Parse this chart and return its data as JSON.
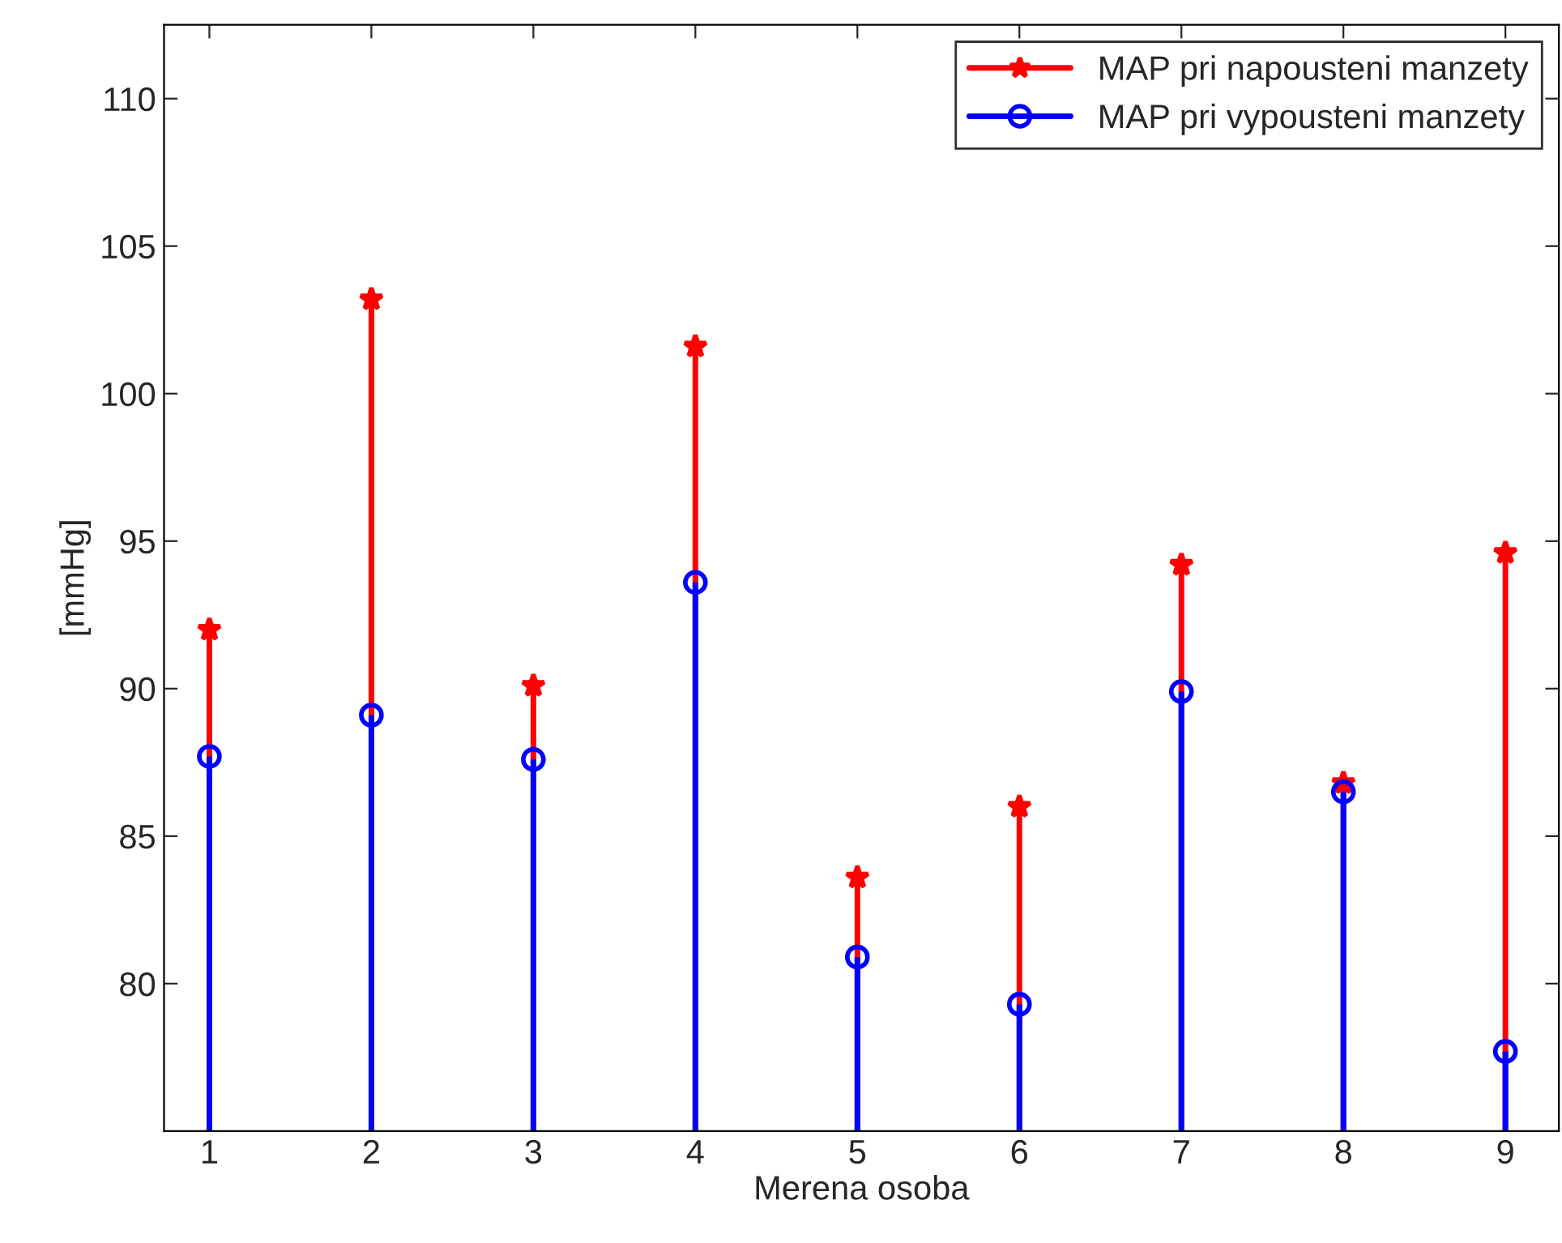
{
  "chart_data": {
    "type": "lollipop",
    "xlabel": "Merena osoba",
    "ylabel": "[mmHg]",
    "x": [
      1,
      2,
      3,
      4,
      5,
      6,
      7,
      8,
      9
    ],
    "series": [
      {
        "name": "MAP pri napousteni manzety",
        "color": "#ff0000",
        "marker": "star",
        "values": [
          92.0,
          103.2,
          90.1,
          101.6,
          83.6,
          86.0,
          94.2,
          86.8,
          94.6
        ]
      },
      {
        "name": "MAP pri vypousteni manzety",
        "color": "#0000ff",
        "marker": "circle",
        "values": [
          87.7,
          89.1,
          87.6,
          93.6,
          80.9,
          79.3,
          89.9,
          86.5,
          77.7
        ]
      }
    ],
    "xlim": [
      0.72,
      9.33
    ],
    "ylim": [
      75,
      112.5
    ],
    "xticks": [
      1,
      2,
      3,
      4,
      5,
      6,
      7,
      8,
      9
    ],
    "yticks": [
      80,
      85,
      90,
      95,
      100,
      105,
      110
    ],
    "legend": "top right"
  }
}
